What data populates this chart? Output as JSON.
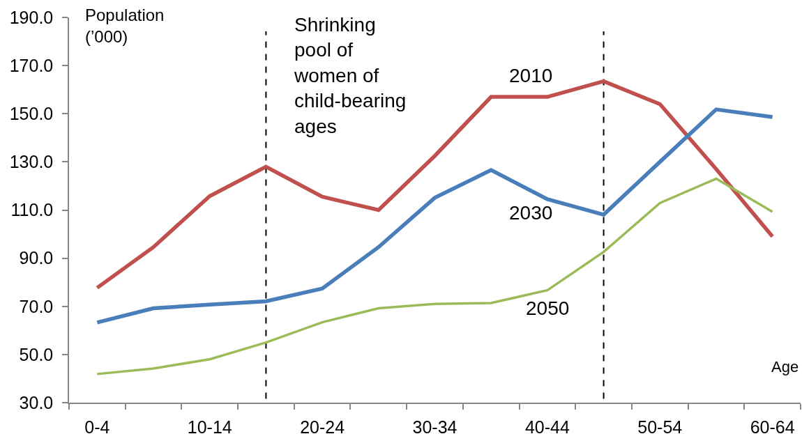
{
  "chart_data": {
    "type": "line",
    "categories": [
      "0-4",
      null,
      "10-14",
      null,
      "20-24",
      null,
      "30-34",
      null,
      "40-44",
      null,
      "50-54",
      null,
      "60-64"
    ],
    "xlabel": "Age",
    "ylabel": "Population\n(’000)",
    "ylim": [
      30,
      190
    ],
    "yticks": [
      {
        "value": 30,
        "label": "30.0"
      },
      {
        "value": 50,
        "label": "50.0"
      },
      {
        "value": 70,
        "label": "70.0"
      },
      {
        "value": 90,
        "label": "90.0"
      },
      {
        "value": 110,
        "label": "110.0"
      },
      {
        "value": 130,
        "label": "130.0"
      },
      {
        "value": 150,
        "label": "150.0"
      },
      {
        "value": 170,
        "label": "170.0"
      },
      {
        "value": 190,
        "label": "190.0"
      }
    ],
    "series": [
      {
        "name": "2010",
        "color": "#c0504d",
        "values": [
          77.7,
          94.6,
          115.8,
          128,
          115.5,
          110,
          132.5,
          157,
          157,
          163.5,
          154,
          127,
          99
        ]
      },
      {
        "name": "2030",
        "color": "#4a7ebb",
        "values": [
          63.3,
          69.2,
          70.7,
          72.1,
          77.4,
          94.6,
          115.1,
          126.6,
          114.5,
          108.1,
          130,
          151.8,
          148.6
        ]
      },
      {
        "name": "2050",
        "color": "#9bbb59",
        "values": [
          41.9,
          44.2,
          48,
          55,
          63.4,
          69.2,
          71,
          71.4,
          76.7,
          92.6,
          112.9,
          123,
          109.3
        ]
      }
    ],
    "annotations": [
      "Shrinking\npool of\nwomen of\nchild-bearing\nages"
    ]
  }
}
